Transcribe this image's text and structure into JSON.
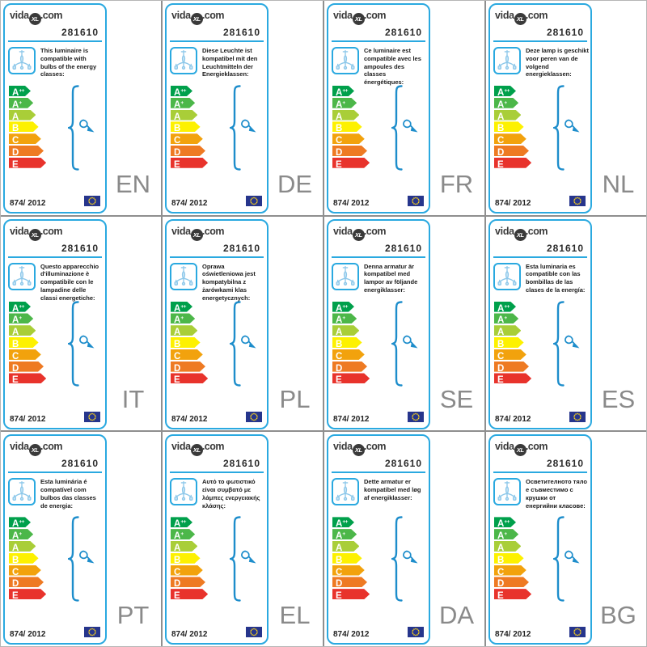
{
  "brand": {
    "prefix": "vida",
    "circle": "XL",
    "suffix": ".com"
  },
  "product_number": "281610",
  "regulation": "874/ 2012",
  "colors": {
    "card_border": "#2aa9e0",
    "accent_blue": "#1d8dcb",
    "language_gray": "#8a8a8a",
    "grid_line": "#8f8f8f"
  },
  "energy_scale": [
    {
      "label": "A",
      "sup": "++",
      "color": "#00a04b"
    },
    {
      "label": "A",
      "sup": "+",
      "color": "#4cb749"
    },
    {
      "label": "A",
      "sup": "",
      "color": "#a9ce38"
    },
    {
      "label": "B",
      "sup": "",
      "color": "#fdf100"
    },
    {
      "label": "C",
      "sup": "",
      "color": "#f2a20d"
    },
    {
      "label": "D",
      "sup": "",
      "color": "#ee7a23"
    },
    {
      "label": "E",
      "sup": "",
      "color": "#e8332c"
    }
  ],
  "cards": [
    {
      "lang": "EN",
      "description": "This luminaire is compatible with bulbs of the energy classes:"
    },
    {
      "lang": "DE",
      "description": "Diese Leuchte ist kompatibel mit den Leuchtmitteln der Energieklassen:"
    },
    {
      "lang": "FR",
      "description": "Ce luminaire est compatible avec les ampoules des classes énergétiques:"
    },
    {
      "lang": "NL",
      "description": "Deze lamp is geschikt voor peren van de volgend energieklassen:"
    },
    {
      "lang": "IT",
      "description": "Questo apparecchio d'illuminazione è compatibile con le lampadine delle classi energetiche:"
    },
    {
      "lang": "PL",
      "description": "Oprawa oświetleniowa jest kompatybilna z żarówkami klas energetycznych:"
    },
    {
      "lang": "SE",
      "description": "Denna armatur är kompatibel med lampor av följande energiklasser:"
    },
    {
      "lang": "ES",
      "description": "Esta luminaria es compatible con las bombillas de las clases de la energía:"
    },
    {
      "lang": "PT",
      "description": "Esta luminária é compatível com bulbos das classes de energia:"
    },
    {
      "lang": "EL",
      "description": "Αυτό το φωτιστικό είναι συμβατό με λάμπες ενεργειακής κλάσης:"
    },
    {
      "lang": "DA",
      "description": "Dette armatur er kompatibel med løg af energiklasser:"
    },
    {
      "lang": "BG",
      "description": "Осветителното тяло е съвместимо с крушки от енергийни класове:"
    }
  ]
}
